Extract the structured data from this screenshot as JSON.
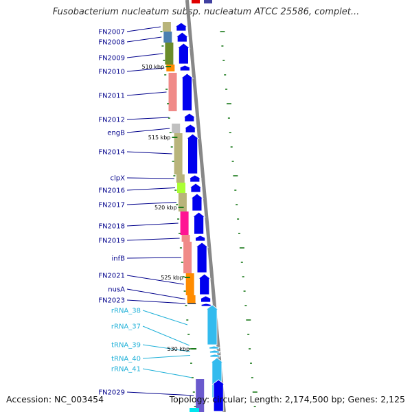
{
  "header": {
    "title": "Fusobacterium nucleatum subsp. nucleatum ATCC 25586, complet..."
  },
  "footer": {
    "accession": "Accession: NC_003454",
    "summary": "Topology: circular; Length: 2,174,500 bp; Genes: 2,125"
  },
  "colors": {
    "strand": "#0000ee",
    "rna": "#33bbee",
    "label_blue": "#00008b",
    "label_cyan": "#1eb0d8",
    "tick": "#1a7a1a",
    "backbone": "#888888"
  },
  "ticks": [
    {
      "label": "510 kbp"
    },
    {
      "label": "515 kbp"
    },
    {
      "label": "520 kbp"
    },
    {
      "label": "525 kbp"
    },
    {
      "label": "530 kbp"
    }
  ],
  "genes": [
    {
      "label": "FN2007",
      "type": "gene",
      "cog_color": "#b8b47a"
    },
    {
      "label": "FN2008",
      "type": "gene",
      "cog_color": "#4a7fb0"
    },
    {
      "label": "FN2009",
      "type": "gene",
      "cog_color": "#6a8c2a"
    },
    {
      "label": "FN2010",
      "type": "gene",
      "cog_color": "#ff8c00"
    },
    {
      "label": "FN2011",
      "type": "gene",
      "cog_color": "#f08a88"
    },
    {
      "label": "FN2012",
      "type": "gene",
      "cog_color": ""
    },
    {
      "label": "engB",
      "type": "gene",
      "cog_color": "#c0c0c0"
    },
    {
      "label": "FN2014",
      "type": "gene",
      "cog_color": "#b8b47a"
    },
    {
      "label": "clpX",
      "type": "gene",
      "cog_color": "#b8b47a"
    },
    {
      "label": "FN2016",
      "type": "gene",
      "cog_color": "#aaff33"
    },
    {
      "label": "FN2017",
      "type": "gene",
      "cog_color": "#b8b47a"
    },
    {
      "label": "FN2018",
      "type": "gene",
      "cog_color": "#ff1493"
    },
    {
      "label": "FN2019",
      "type": "gene",
      "cog_color": "#f08a88"
    },
    {
      "label": "infB",
      "type": "gene",
      "cog_color": "#f08a88"
    },
    {
      "label": "FN2021",
      "type": "gene",
      "cog_color": "#ff8c00"
    },
    {
      "label": "nusA",
      "type": "gene",
      "cog_color": "#ff8c00"
    },
    {
      "label": "FN2023",
      "type": "gene",
      "cog_color": "#555555"
    },
    {
      "label": "rRNA_38",
      "type": "rna",
      "cog_color": ""
    },
    {
      "label": "rRNA_37",
      "type": "rna",
      "cog_color": ""
    },
    {
      "label": "tRNA_39",
      "type": "rna",
      "cog_color": ""
    },
    {
      "label": "tRNA_40",
      "type": "rna",
      "cog_color": ""
    },
    {
      "label": "rRNA_41",
      "type": "rna",
      "cog_color": ""
    },
    {
      "label": "FN2029",
      "type": "gene",
      "cog_color": "#6a5acd"
    }
  ]
}
